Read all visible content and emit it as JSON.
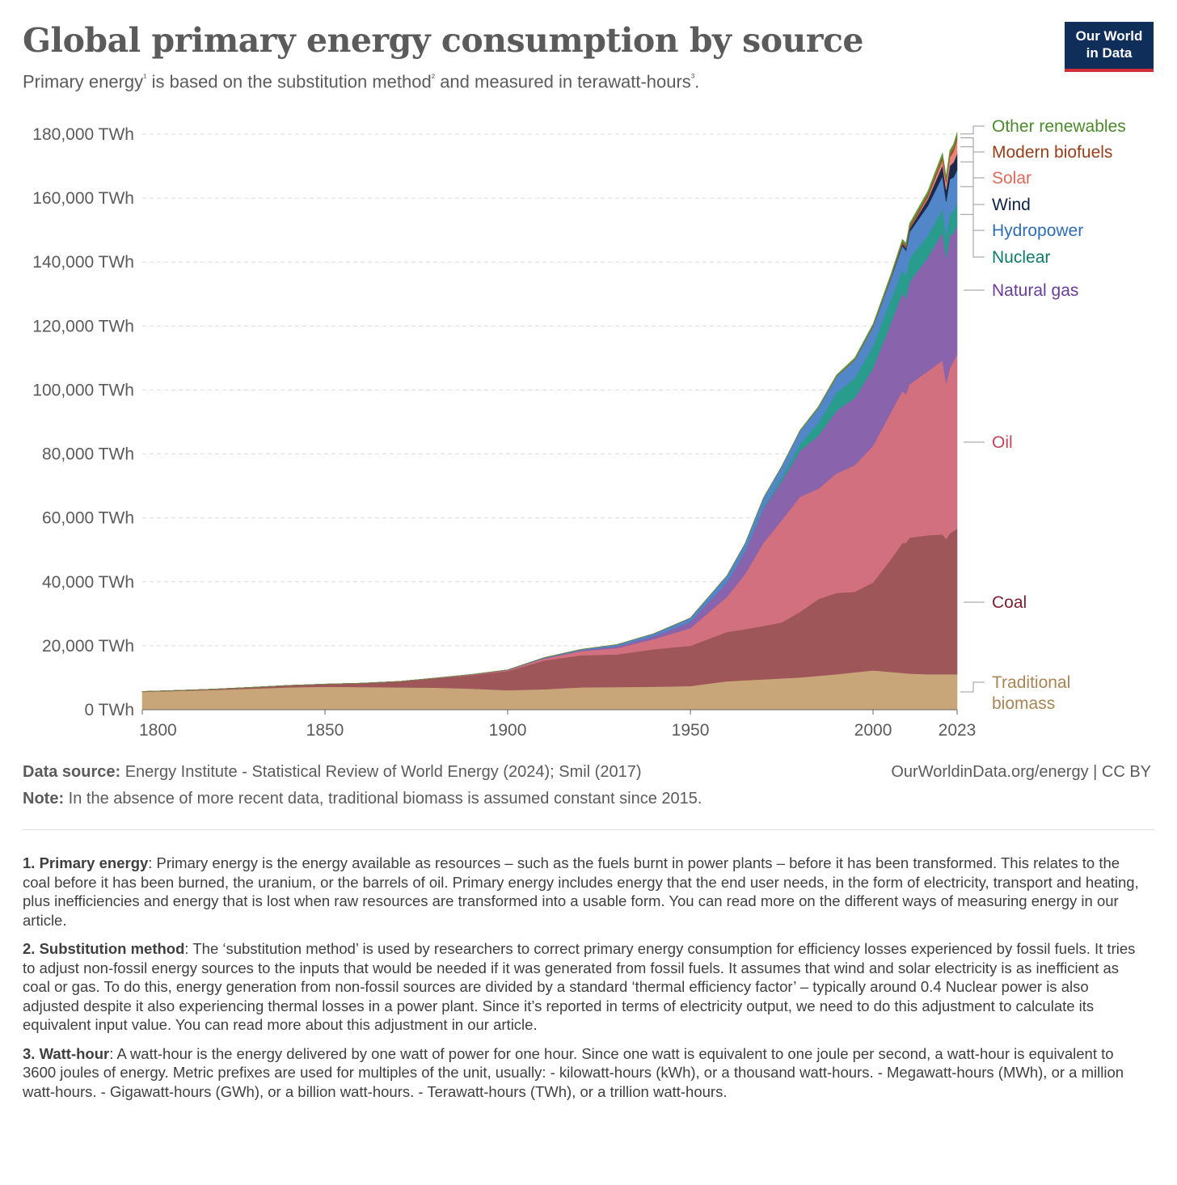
{
  "header": {
    "title": "Global primary energy consumption by source",
    "subtitle_parts": [
      "Primary energy",
      "¹",
      " is based on the substitution method",
      "²",
      " and measured in terawatt-hours",
      "³",
      "."
    ],
    "logo_line1": "Our World",
    "logo_line2": "in Data"
  },
  "colors": {
    "traditional_biomass": "#c9a57a",
    "coal": "#9e5659",
    "oil": "#d3707f",
    "natural_gas": "#8963ab",
    "nuclear": "#2a9c8d",
    "hydropower": "#5186c8",
    "wind": "#1a2a4a",
    "solar": "#e8857a",
    "modern_biofuels": "#a04e2a",
    "other_renewables": "#5f9b3e"
  },
  "chart_data": {
    "type": "area",
    "stacked": true,
    "title": "Global primary energy consumption by source",
    "ylabel": "TWh",
    "ylim": [
      0,
      180000
    ],
    "xlim": [
      1800,
      2023
    ],
    "grid": true,
    "y_ticks": [
      "0 TWh",
      "20,000 TWh",
      "40,000 TWh",
      "60,000 TWh",
      "80,000 TWh",
      "100,000 TWh",
      "120,000 TWh",
      "140,000 TWh",
      "160,000 TWh",
      "180,000 TWh"
    ],
    "y_tick_values": [
      0,
      20000,
      40000,
      60000,
      80000,
      100000,
      120000,
      140000,
      160000,
      180000
    ],
    "x_ticks": [
      "1800",
      "1850",
      "1900",
      "1950",
      "2000",
      "2023"
    ],
    "x_tick_values": [
      1800,
      1850,
      1900,
      1950,
      2000,
      2023
    ],
    "x": [
      1800,
      1810,
      1820,
      1830,
      1840,
      1850,
      1860,
      1870,
      1880,
      1890,
      1900,
      1910,
      1920,
      1930,
      1940,
      1950,
      1960,
      1965,
      1970,
      1975,
      1980,
      1985,
      1990,
      1995,
      2000,
      2005,
      2008,
      2009,
      2010,
      2015,
      2019,
      2020,
      2021,
      2022,
      2023
    ],
    "series": [
      {
        "key": "traditional_biomass",
        "name": "Traditional biomass",
        "legend": [
          "Traditional",
          "biomass"
        ],
        "values": [
          5600,
          5900,
          6200,
          6600,
          7000,
          7200,
          7100,
          7000,
          6900,
          6600,
          6100,
          6400,
          7000,
          7100,
          7200,
          7400,
          8900,
          9200,
          9500,
          9800,
          10100,
          10600,
          11100,
          11700,
          12300,
          11800,
          11500,
          11400,
          11300,
          11100,
          11100,
          11100,
          11100,
          11100,
          11100
        ]
      },
      {
        "key": "coal",
        "name": "Coal",
        "legend": [
          "Coal"
        ],
        "values": [
          100,
          150,
          250,
          400,
          600,
          800,
          1200,
          1800,
          2900,
          4200,
          6000,
          9000,
          10000,
          10200,
          11700,
          12600,
          15400,
          16000,
          16700,
          17500,
          20500,
          24000,
          25400,
          25200,
          27500,
          35500,
          40600,
          40800,
          42500,
          43500,
          43700,
          42300,
          44000,
          44800,
          45600
        ]
      },
      {
        "key": "oil",
        "name": "Oil",
        "legend": [
          "Oil"
        ],
        "values": [
          0,
          0,
          0,
          0,
          0,
          0,
          0,
          20,
          50,
          150,
          250,
          600,
          1300,
          2000,
          3200,
          5500,
          11000,
          17300,
          26000,
          32000,
          36000,
          34500,
          37400,
          39600,
          42800,
          46000,
          47600,
          46500,
          48000,
          51300,
          54400,
          48700,
          51700,
          53100,
          54600
        ]
      },
      {
        "key": "natural_gas",
        "name": "Natural gas",
        "legend": [
          "Natural gas"
        ],
        "values": [
          0,
          0,
          0,
          0,
          0,
          0,
          0,
          0,
          20,
          50,
          70,
          150,
          250,
          600,
          900,
          2000,
          4500,
          7000,
          10700,
          12200,
          14400,
          16600,
          19600,
          21000,
          24200,
          28000,
          30500,
          30000,
          32000,
          35600,
          40100,
          39100,
          41400,
          40000,
          40100
        ]
      },
      {
        "key": "nuclear",
        "name": "Nuclear",
        "legend": [
          "Nuclear"
        ],
        "values": [
          0,
          0,
          0,
          0,
          0,
          0,
          0,
          0,
          0,
          0,
          0,
          0,
          0,
          0,
          0,
          0,
          0,
          20,
          250,
          1100,
          2100,
          4100,
          5600,
          6300,
          7000,
          7400,
          7300,
          7200,
          7400,
          6800,
          7200,
          6900,
          7100,
          6800,
          7000
        ]
      },
      {
        "key": "hydropower",
        "name": "Hydropower",
        "legend": [
          "Hydropower"
        ],
        "values": [
          0,
          0,
          0,
          0,
          0,
          0,
          0,
          0,
          0,
          10,
          50,
          150,
          300,
          500,
          800,
          1200,
          2100,
          2500,
          3100,
          3500,
          4100,
          4600,
          5100,
          5600,
          6000,
          6600,
          7600,
          7700,
          8200,
          9300,
          10400,
          10800,
          10600,
          10700,
          10400
        ]
      },
      {
        "key": "wind",
        "name": "Wind",
        "legend": [
          "Wind"
        ],
        "values": [
          0,
          0,
          0,
          0,
          0,
          0,
          0,
          0,
          0,
          0,
          0,
          0,
          0,
          0,
          0,
          0,
          0,
          0,
          0,
          0,
          0,
          0,
          10,
          20,
          80,
          250,
          600,
          800,
          1000,
          2100,
          3400,
          3700,
          4200,
          4700,
          5100
        ]
      },
      {
        "key": "solar",
        "name": "Solar",
        "legend": [
          "Solar"
        ],
        "values": [
          0,
          0,
          0,
          0,
          0,
          0,
          0,
          0,
          0,
          0,
          0,
          0,
          0,
          0,
          0,
          0,
          0,
          0,
          0,
          0,
          0,
          0,
          0,
          0,
          0,
          10,
          30,
          50,
          80,
          650,
          1700,
          2100,
          2600,
          3300,
          4300
        ]
      },
      {
        "key": "modern_biofuels",
        "name": "Modern biofuels",
        "legend": [
          "Modern biofuels"
        ],
        "values": [
          0,
          0,
          0,
          0,
          0,
          0,
          0,
          0,
          0,
          0,
          0,
          0,
          0,
          0,
          0,
          0,
          0,
          0,
          0,
          0,
          50,
          100,
          150,
          200,
          250,
          400,
          700,
          750,
          850,
          1000,
          1150,
          1100,
          1200,
          1250,
          1300
        ]
      },
      {
        "key": "other_renewables",
        "name": "Other renewables",
        "legend": [
          "Other renewables"
        ],
        "values": [
          0,
          0,
          0,
          0,
          0,
          0,
          0,
          0,
          0,
          0,
          0,
          0,
          0,
          0,
          0,
          0,
          0,
          0,
          50,
          80,
          150,
          250,
          350,
          450,
          550,
          650,
          700,
          720,
          760,
          900,
          1000,
          1020,
          1060,
          1080,
          1100
        ]
      }
    ]
  },
  "footer": {
    "source_label": "Data source:",
    "source_text": " Energy Institute - Statistical Review of World Energy (2024); Smil (2017)",
    "note_label": "Note:",
    "note_text": " In the absence of more recent data, traditional biomass is assumed constant since 2015.",
    "url_text": "OurWorldinData.org/energy | CC BY"
  },
  "notes": [
    {
      "label": "1. Primary energy",
      "text": ": Primary energy is the energy available as resources – such as the fuels burnt in power plants – before it has been transformed. This relates to the coal before it has been burned, the uranium, or the barrels of oil. Primary energy includes energy that the end user needs, in the form of electricity, transport and heating, plus inefficiencies and energy that is lost when raw resources are transformed into a usable form. You can read more on the different ways of measuring energy in our article."
    },
    {
      "label": "2. Substitution method",
      "text": ": The ‘substitution method’ is used by researchers to correct primary energy consumption for efficiency losses experienced by fossil fuels. It tries to adjust non-fossil energy sources to the inputs that would be needed if it was generated from fossil fuels. It assumes that wind and solar electricity is as inefficient as coal or gas. To do this, energy generation from non-fossil sources are divided by a standard ‘thermal efficiency factor’ – typically around 0.4 Nuclear power is also adjusted despite it also experiencing thermal losses in a power plant. Since it’s reported in terms of electricity output, we need to do this adjustment to calculate its equivalent input value. You can read more about this adjustment in our article."
    },
    {
      "label": "3. Watt-hour",
      "text": ": A watt-hour is the energy delivered by one watt of power for one hour. Since one watt is equivalent to one joule per second, a watt-hour is equivalent to 3600 joules of energy. Metric prefixes are used for multiples of the unit, usually: - kilowatt-hours (kWh), or a thousand watt-hours. - Megawatt-hours (MWh), or a million watt-hours. - Gigawatt-hours (GWh), or a billion watt-hours. - Terawatt-hours (TWh), or a trillion watt-hours."
    }
  ]
}
